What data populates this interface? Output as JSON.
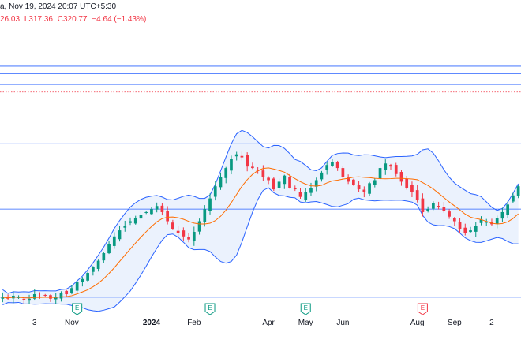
{
  "header": {
    "title_fragment": "a, Nov 19, 2024 20:07 UTC+5:30",
    "ohlc_fragment": "26.03",
    "low": "L317.36",
    "close": "C320.77",
    "change": "−4.64 (−1.43%)"
  },
  "colors": {
    "up": "#089981",
    "down": "#f23645",
    "band": "#2962ff",
    "band_fill": "#dbe8fb",
    "basis": "#ff6d00",
    "hline": "#2962ff",
    "dotted": "#f23645",
    "earnings_e": "#089981",
    "earnings_e_neg": "#f23645"
  },
  "icons": [
    "earnings-e-icon"
  ],
  "chart_data": {
    "type": "candlestick",
    "title": "",
    "xlabel": "",
    "ylabel": "",
    "x_ticks": [
      {
        "label": "3",
        "idx": 6
      },
      {
        "label": "Nov",
        "idx": 13
      },
      {
        "label": "2024",
        "idx": 28,
        "bold": true
      },
      {
        "label": "Feb",
        "idx": 36
      },
      {
        "label": "Apr",
        "idx": 50
      },
      {
        "label": "May",
        "idx": 57
      },
      {
        "label": "Jun",
        "idx": 64
      },
      {
        "label": "Aug",
        "idx": 78
      },
      {
        "label": "Sep",
        "idx": 85
      },
      {
        "label": "2",
        "idx": 92
      }
    ],
    "earnings_markers": [
      {
        "idx": 14,
        "label": "E",
        "kind": "positive"
      },
      {
        "idx": 39,
        "label": "E",
        "kind": "positive"
      },
      {
        "idx": 57,
        "label": "E",
        "kind": "positive"
      },
      {
        "idx": 79,
        "label": "E",
        "kind": "negative"
      }
    ],
    "horizontal_levels": [
      372,
      364,
      359,
      352,
      313,
      270,
      212
    ],
    "dotted_level": 347,
    "ylim": [
      200,
      392
    ],
    "closes": [
      212,
      211,
      213,
      212,
      210,
      211,
      214,
      212,
      213,
      211,
      212,
      215,
      214,
      218,
      222,
      224,
      228,
      232,
      236,
      241,
      247,
      252,
      256,
      259,
      262,
      264,
      266,
      268,
      270,
      272,
      268,
      262,
      257,
      254,
      252,
      250,
      255,
      262,
      270,
      277,
      285,
      291,
      297,
      303,
      306,
      304,
      298,
      297,
      295,
      291,
      289,
      283,
      288,
      292,
      284,
      283,
      278,
      281,
      284,
      289,
      294,
      299,
      301,
      297,
      291,
      288,
      286,
      283,
      281,
      287,
      289,
      297,
      300,
      298,
      293,
      288,
      284,
      281,
      276,
      268,
      270,
      274,
      272,
      269,
      265,
      262,
      257,
      254,
      256,
      259,
      263,
      262,
      260,
      264,
      268,
      273,
      279,
      285
    ]
  }
}
